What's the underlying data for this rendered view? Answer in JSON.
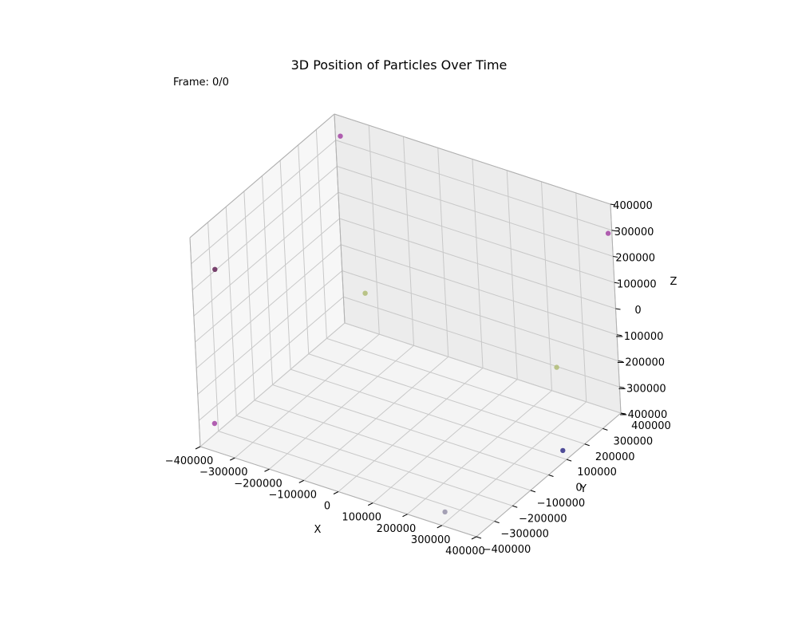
{
  "chart_data": {
    "type": "scatter",
    "title": "3D Position of Particles Over Time",
    "annotation": "Frame: 0/0",
    "xlabel": "X",
    "ylabel": "Y",
    "zlabel": "Z",
    "xlim": [
      -400000,
      400000
    ],
    "ylim": [
      -400000,
      400000
    ],
    "zlim": [
      -400000,
      400000
    ],
    "ticks": [
      -400000,
      -300000,
      -200000,
      -100000,
      0,
      100000,
      200000,
      300000,
      400000
    ],
    "tick_labels": [
      "−400000",
      "−300000",
      "−200000",
      "−100000",
      "0",
      "100000",
      "200000",
      "300000",
      "400000"
    ],
    "grid": true,
    "points": [
      {
        "x": -380000,
        "y": 390000,
        "z": 330000,
        "color": "#a84ea8"
      },
      {
        "x": 400000,
        "y": 380000,
        "z": 300000,
        "color": "#a84ea8"
      },
      {
        "x": -370000,
        "y": -330000,
        "z": 250000,
        "color": "#6a2f5e"
      },
      {
        "x": -330000,
        "y": 390000,
        "z": -250000,
        "color": "#b4bf7c"
      },
      {
        "x": 240000,
        "y": 360000,
        "z": -270000,
        "color": "#b4bf7c"
      },
      {
        "x": 390000,
        "y": 100000,
        "z": -370000,
        "color": "#3d3a8e"
      },
      {
        "x": -360000,
        "y": -390000,
        "z": -300000,
        "color": "#a84ea8"
      },
      {
        "x": 300000,
        "y": -380000,
        "z": -360000,
        "color": "#9b97ad"
      }
    ]
  }
}
